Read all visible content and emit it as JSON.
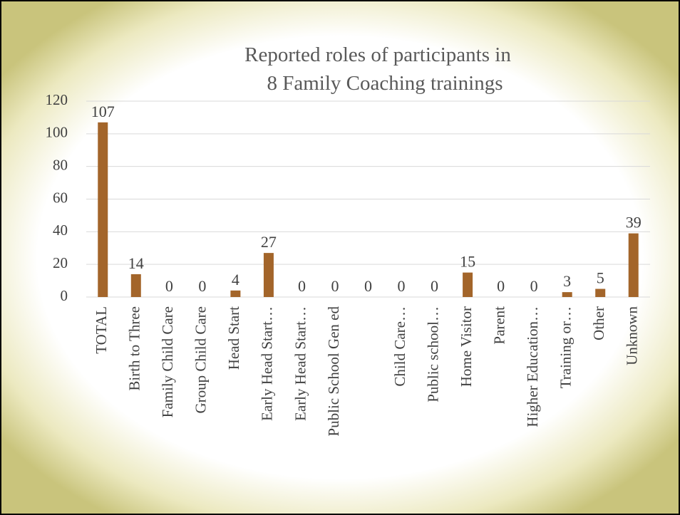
{
  "chart_data": {
    "type": "bar",
    "title": [
      "Reported roles of participants in",
      "8  Family Coaching trainings"
    ],
    "categories": [
      "TOTAL",
      "Birth to Three",
      "Family Child Care",
      "Group Child Care",
      "Head Start",
      "Early Head Start…",
      "Early Head Start…",
      "Public School Gen ed",
      null,
      "Child Care…",
      "Public school…",
      "Home Visitor",
      "Parent",
      "Higher Education…",
      "Training or…",
      "Other",
      "Unknown"
    ],
    "values": [
      107,
      14,
      0,
      0,
      4,
      27,
      0,
      0,
      0,
      0,
      0,
      15,
      0,
      0,
      3,
      5,
      39
    ],
    "color": "#a3652a",
    "ylim": [
      0,
      120
    ],
    "yticks": [
      0,
      20,
      40,
      60,
      80,
      100,
      120
    ],
    "grid": true
  }
}
